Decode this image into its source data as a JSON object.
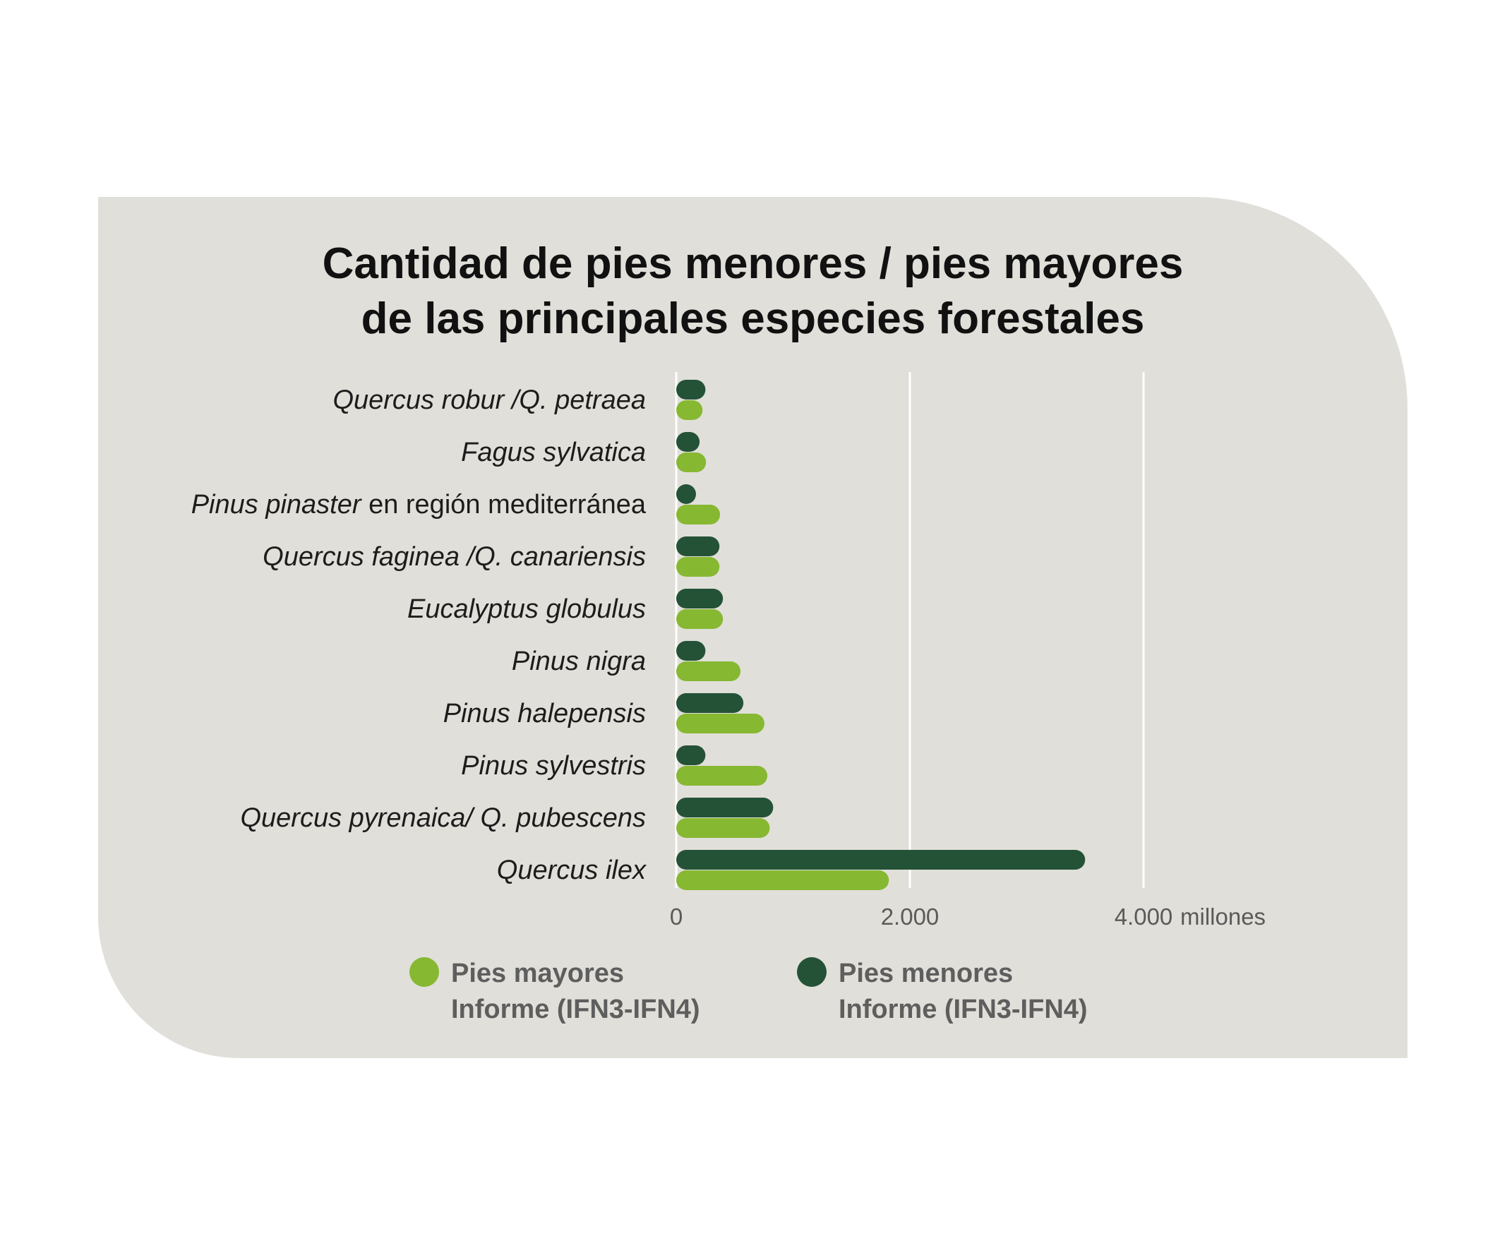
{
  "colors": {
    "card_background": "#e1dfd9",
    "pies_mayores": "#86b832",
    "pies_menores": "#245237",
    "gridline": "#ffffff"
  },
  "chart_data": {
    "type": "bar",
    "orientation": "horizontal",
    "title": [
      "Cantidad de pies menores / pies mayores",
      "de las principales especies forestales"
    ],
    "categories": [
      {
        "italic": "Quercus robur /Q. petraea",
        "normal": ""
      },
      {
        "italic": "Fagus sylvatica",
        "normal": ""
      },
      {
        "italic": "Pinus pinaster",
        "normal": " en región mediterránea"
      },
      {
        "italic": "Quercus faginea /Q. canariensis",
        "normal": ""
      },
      {
        "italic": "Eucalyptus globulus",
        "normal": ""
      },
      {
        "italic": "Pinus nigra",
        "normal": ""
      },
      {
        "italic": "Pinus halepensis",
        "normal": ""
      },
      {
        "italic": "Pinus sylvestris",
        "normal": ""
      },
      {
        "italic": "Quercus pyrenaica/ Q. pubescens",
        "normal": ""
      },
      {
        "italic": "Quercus ilex",
        "normal": ""
      }
    ],
    "series": [
      {
        "name": "Pies menores",
        "name_line2": "Informe (IFN3-IFN4)",
        "color_key": "pies_menores",
        "values": [
          250,
          200,
          140,
          370,
          400,
          250,
          575,
          250,
          830,
          3500
        ]
      },
      {
        "name": "Pies mayores",
        "name_line2": "Informe (IFN3-IFN4)",
        "color_key": "pies_mayores",
        "values": [
          225,
          255,
          375,
          370,
          400,
          550,
          755,
          780,
          800,
          1820
        ]
      }
    ],
    "x_ticks": [
      {
        "value": 0,
        "label": "0"
      },
      {
        "value": 2000,
        "label": "2.000"
      },
      {
        "value": 4000,
        "label": "4.000"
      }
    ],
    "x_unit": "millones",
    "xlim": [
      0,
      4000
    ],
    "grid": true,
    "legend_position": "bottom",
    "legend_order": [
      1,
      0
    ]
  }
}
